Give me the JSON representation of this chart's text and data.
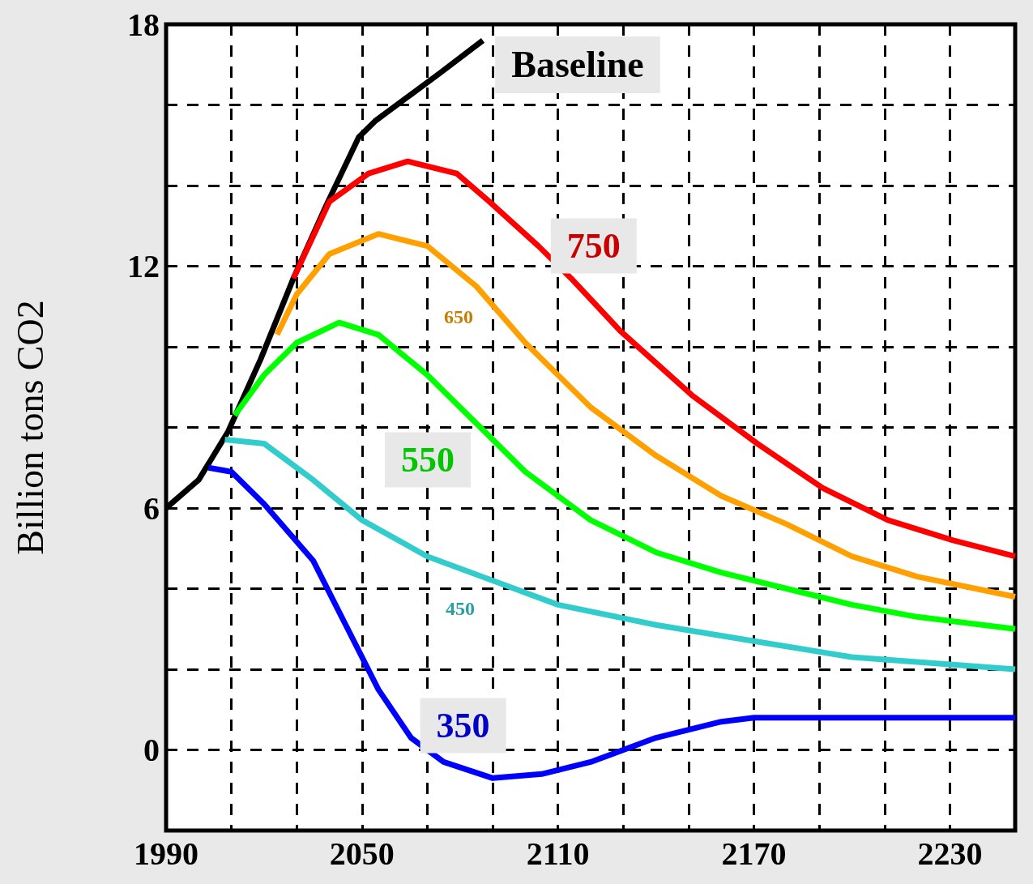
{
  "chart_data": {
    "type": "line",
    "ylabel": "Billion tons CO2",
    "x": [
      1990,
      2000,
      2009,
      2019,
      2029,
      2039,
      2049,
      2054,
      2064,
      2074,
      2087
    ],
    "series": [
      {
        "name": "Baseline",
        "color": "#000000",
        "values": [
          6,
          6.7,
          7.9,
          9.7,
          11.7,
          13.5,
          15.2,
          15.6,
          16.2,
          16.8,
          17.6
        ]
      },
      {
        "name": "750",
        "color": "#ff0000",
        "x": [
          2029,
          2040,
          2052,
          2064,
          2079,
          2089,
          2104,
          2114,
          2129,
          2151,
          2171,
          2191,
          2211,
          2231,
          2250
        ],
        "values": [
          11.7,
          13.6,
          14.3,
          14.6,
          14.3,
          13.6,
          12.5,
          11.7,
          10.4,
          8.8,
          7.6,
          6.5,
          5.7,
          5.2,
          4.8
        ]
      },
      {
        "name": "650",
        "color": "#ffa000",
        "x": [
          2024,
          2030,
          2040,
          2055,
          2070,
          2085,
          2100,
          2120,
          2140,
          2160,
          2180,
          2200,
          2220,
          2250
        ],
        "values": [
          10.3,
          11.3,
          12.3,
          12.8,
          12.5,
          11.5,
          10.1,
          8.5,
          7.3,
          6.3,
          5.6,
          4.8,
          4.3,
          3.8
        ]
      },
      {
        "name": "550",
        "color": "#00ff00",
        "x": [
          2011,
          2020,
          2030,
          2043,
          2055,
          2070,
          2085,
          2100,
          2120,
          2140,
          2160,
          2180,
          2200,
          2220,
          2250
        ],
        "values": [
          8.3,
          9.3,
          10.1,
          10.6,
          10.3,
          9.3,
          8.1,
          6.9,
          5.7,
          4.9,
          4.4,
          4.0,
          3.6,
          3.3,
          3.0
        ]
      },
      {
        "name": "450",
        "color": "#33cccc",
        "x": [
          2008,
          2020,
          2035,
          2050,
          2070,
          2090,
          2110,
          2140,
          2170,
          2200,
          2250
        ],
        "values": [
          7.7,
          7.6,
          6.7,
          5.7,
          4.8,
          4.2,
          3.6,
          3.1,
          2.7,
          2.3,
          2.0
        ]
      },
      {
        "name": "350",
        "color": "#0000ff",
        "x": [
          2003,
          2010,
          2020,
          2035,
          2045,
          2055,
          2065,
          2075,
          2090,
          2105,
          2120,
          2140,
          2160,
          2170,
          2250
        ],
        "values": [
          7.0,
          6.9,
          6.1,
          4.7,
          3.1,
          1.5,
          0.3,
          -0.3,
          -0.7,
          -0.6,
          -0.3,
          0.3,
          0.7,
          0.8,
          0.8
        ]
      }
    ],
    "xlim": [
      1990,
      2250
    ],
    "xticks": [
      1990,
      {
        "value": 2010,
        "label": null
      },
      {
        "value": 2030,
        "label": null
      },
      2050,
      {
        "value": 2070,
        "label": null
      },
      {
        "value": 2090,
        "label": null
      },
      2110,
      {
        "value": 2130,
        "label": null
      },
      {
        "value": 2150,
        "label": null
      },
      2170,
      {
        "value": 2190,
        "label": null
      },
      {
        "value": 2210,
        "label": null
      },
      2230
    ],
    "ylim": [
      -2,
      18
    ],
    "yticks": [
      {
        "value": -2,
        "label": null
      },
      0,
      {
        "value": 2,
        "label": null
      },
      {
        "value": 4,
        "label": null
      },
      6,
      {
        "value": 8,
        "label": null
      },
      {
        "value": 10,
        "label": null
      },
      12,
      {
        "value": 14,
        "label": null
      },
      {
        "value": 16,
        "label": null
      },
      18
    ],
    "grid": true,
    "line_style": "solid",
    "marker": "none"
  }
}
